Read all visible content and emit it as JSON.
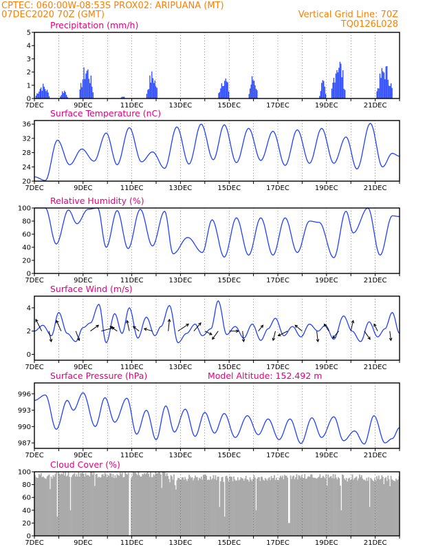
{
  "header": {
    "line1": "CPTEC:   060:00W-08:53S   PROX02: ARIPUANA (MT)",
    "line2_left": "07DEC2020 70Z (GMT)",
    "line2_right": "Vertical Grid Line: 70Z",
    "line3_right": "TQ0126L028"
  },
  "x_ticks": [
    "7DEC",
    "9DEC",
    "11DEC",
    "13DEC",
    "15DEC",
    "17DEC",
    "19DEC",
    "21DEC"
  ],
  "colors": {
    "header": "#ff7f00",
    "title": "#e5007a",
    "line": "#2040ff",
    "bar": "#1f3fff",
    "cloud": "#aaaaaa"
  },
  "chart_data": [
    {
      "type": "bar",
      "title": "Precipitation (mm/h)",
      "ylim": [
        0,
        5
      ],
      "y_ticks": [
        "0",
        "1",
        "2",
        "3",
        "4",
        "5"
      ],
      "events": [
        {
          "x": 0.05,
          "w": 0.55,
          "peak": 1.2
        },
        {
          "x": 1.05,
          "w": 0.3,
          "peak": 0.8
        },
        {
          "x": 1.85,
          "w": 0.55,
          "peak": 2.8
        },
        {
          "x": 3.55,
          "w": 0.15,
          "peak": 0.25
        },
        {
          "x": 4.6,
          "w": 0.45,
          "peak": 2.2
        },
        {
          "x": 7.55,
          "w": 0.45,
          "peak": 2.0
        },
        {
          "x": 8.8,
          "w": 0.35,
          "peak": 2.0
        },
        {
          "x": 11.7,
          "w": 0.25,
          "peak": 1.5
        },
        {
          "x": 12.2,
          "w": 0.55,
          "peak": 3.5
        },
        {
          "x": 14.05,
          "w": 0.65,
          "peak": 2.8
        }
      ]
    },
    {
      "type": "line",
      "title": "Surface Temperature (nC)",
      "ylim": [
        20,
        37
      ],
      "y_ticks": [
        "20",
        "24",
        "28",
        "32",
        "36"
      ],
      "nodes": [
        [
          0.0,
          21.2
        ],
        [
          0.45,
          20.2
        ],
        [
          0.95,
          31.5
        ],
        [
          1.45,
          24.6
        ],
        [
          1.95,
          29.0
        ],
        [
          2.45,
          25.6
        ],
        [
          2.95,
          33.5
        ],
        [
          3.4,
          24.6
        ],
        [
          3.9,
          35.0
        ],
        [
          4.4,
          25.4
        ],
        [
          4.85,
          28.2
        ],
        [
          5.35,
          23.6
        ],
        [
          5.85,
          35.2
        ],
        [
          6.35,
          24.8
        ],
        [
          6.85,
          36.0
        ],
        [
          7.35,
          26.0
        ],
        [
          7.8,
          35.8
        ],
        [
          8.3,
          25.2
        ],
        [
          8.8,
          34.8
        ],
        [
          9.3,
          25.8
        ],
        [
          9.8,
          34.0
        ],
        [
          10.3,
          24.4
        ],
        [
          10.8,
          34.4
        ],
        [
          11.3,
          25.0
        ],
        [
          11.8,
          34.8
        ],
        [
          12.3,
          25.0
        ],
        [
          12.8,
          32.4
        ],
        [
          13.25,
          23.4
        ],
        [
          13.8,
          36.2
        ],
        [
          14.3,
          24.0
        ],
        [
          14.7,
          27.8
        ],
        [
          15.0,
          27.0
        ]
      ]
    },
    {
      "type": "line",
      "title": "Relative Humidity (%)",
      "ylim": [
        0,
        100
      ],
      "y_ticks": [
        "0",
        "20",
        "40",
        "60",
        "80",
        "100"
      ],
      "nodes": [
        [
          0.0,
          100
        ],
        [
          0.45,
          100
        ],
        [
          0.9,
          45
        ],
        [
          1.4,
          97
        ],
        [
          1.75,
          76
        ],
        [
          2.2,
          98
        ],
        [
          2.6,
          100
        ],
        [
          2.95,
          40
        ],
        [
          3.4,
          96
        ],
        [
          3.85,
          38
        ],
        [
          4.35,
          98
        ],
        [
          4.85,
          42
        ],
        [
          5.35,
          95
        ],
        [
          5.7,
          30
        ],
        [
          6.3,
          55
        ],
        [
          6.9,
          32
        ],
        [
          7.3,
          82
        ],
        [
          7.8,
          25
        ],
        [
          8.3,
          85
        ],
        [
          8.8,
          28
        ],
        [
          9.3,
          85
        ],
        [
          9.8,
          28
        ],
        [
          10.3,
          85
        ],
        [
          10.8,
          32
        ],
        [
          11.3,
          80
        ],
        [
          11.7,
          78
        ],
        [
          12.3,
          24
        ],
        [
          12.8,
          95
        ],
        [
          13.1,
          62
        ],
        [
          13.7,
          100
        ],
        [
          14.2,
          28
        ],
        [
          14.7,
          88
        ],
        [
          15.0,
          87
        ]
      ]
    },
    {
      "type": "line",
      "title": "Surface Wind (m/s)",
      "ylim": [
        -0.5,
        5
      ],
      "y_ticks": [
        "0",
        "2",
        "4"
      ],
      "nodes": [
        [
          0.0,
          2.0
        ],
        [
          0.35,
          2.5
        ],
        [
          0.7,
          1.6
        ],
        [
          1.0,
          3.6
        ],
        [
          1.35,
          1.8
        ],
        [
          1.7,
          1.1
        ],
        [
          2.0,
          2.3
        ],
        [
          2.3,
          2.7
        ],
        [
          2.65,
          4.3
        ],
        [
          2.95,
          1.0
        ],
        [
          3.3,
          3.5
        ],
        [
          3.6,
          1.8
        ],
        [
          3.9,
          4.0
        ],
        [
          4.25,
          1.4
        ],
        [
          4.6,
          3.2
        ],
        [
          4.95,
          1.6
        ],
        [
          5.2,
          2.4
        ],
        [
          5.55,
          4.2
        ],
        [
          5.9,
          1.0
        ],
        [
          6.25,
          1.8
        ],
        [
          6.6,
          2.6
        ],
        [
          6.9,
          1.6
        ],
        [
          7.25,
          2.2
        ],
        [
          7.55,
          4.6
        ],
        [
          7.9,
          1.7
        ],
        [
          8.25,
          2.4
        ],
        [
          8.6,
          1.4
        ],
        [
          8.95,
          2.6
        ],
        [
          9.3,
          1.2
        ],
        [
          9.6,
          2.2
        ],
        [
          9.9,
          3.1
        ],
        [
          10.25,
          1.6
        ],
        [
          10.6,
          2.4
        ],
        [
          10.95,
          1.5
        ],
        [
          11.3,
          2.6
        ],
        [
          11.65,
          2.0
        ],
        [
          11.95,
          2.5
        ],
        [
          12.3,
          1.3
        ],
        [
          12.7,
          3.3
        ],
        [
          13.05,
          2.0
        ],
        [
          13.4,
          1.1
        ],
        [
          13.75,
          2.8
        ],
        [
          14.1,
          1.5
        ],
        [
          14.4,
          2.2
        ],
        [
          14.7,
          3.6
        ],
        [
          15.0,
          1.8
        ]
      ],
      "arrows": [
        {
          "x": 0.3,
          "dx": -0.5,
          "dy": 1.0
        },
        {
          "x": 0.6,
          "dx": 0.2,
          "dy": -0.9
        },
        {
          "x": 1.1,
          "dx": -0.4,
          "dy": 0.9
        },
        {
          "x": 1.7,
          "dx": 0.3,
          "dy": -0.8
        },
        {
          "x": 2.3,
          "dx": 0.7,
          "dy": 0.5
        },
        {
          "x": 2.75,
          "dx": 1.1,
          "dy": 0.3
        },
        {
          "x": 3.4,
          "dx": -0.6,
          "dy": 0.4
        },
        {
          "x": 3.9,
          "dx": -0.2,
          "dy": 0.9
        },
        {
          "x": 4.3,
          "dx": -0.5,
          "dy": 0.4
        },
        {
          "x": 4.85,
          "dx": -0.7,
          "dy": 0.2
        },
        {
          "x": 5.5,
          "dx": 0.1,
          "dy": 1.0
        },
        {
          "x": 5.9,
          "dx": 0.9,
          "dy": 0.6
        },
        {
          "x": 6.55,
          "dx": 0.6,
          "dy": 0.7
        },
        {
          "x": 7.0,
          "dx": 0.6,
          "dy": -0.3
        },
        {
          "x": 7.55,
          "dx": -0.5,
          "dy": -0.7
        },
        {
          "x": 8.0,
          "dx": 0.8,
          "dy": 0.0
        },
        {
          "x": 8.55,
          "dx": 0.1,
          "dy": -0.9
        },
        {
          "x": 9.2,
          "dx": 0.4,
          "dy": 0.5
        },
        {
          "x": 9.9,
          "dx": -0.2,
          "dy": -0.8
        },
        {
          "x": 10.4,
          "dx": -0.8,
          "dy": -0.4
        },
        {
          "x": 11.0,
          "dx": -0.6,
          "dy": 0.5
        },
        {
          "x": 11.6,
          "dx": 0.1,
          "dy": -0.9
        },
        {
          "x": 12.1,
          "dx": -0.4,
          "dy": 0.6
        },
        {
          "x": 12.5,
          "dx": -0.5,
          "dy": -0.6
        },
        {
          "x": 13.0,
          "dx": 0.2,
          "dy": 0.9
        },
        {
          "x": 13.55,
          "dx": 0.5,
          "dy": -0.7
        },
        {
          "x": 14.1,
          "dx": -0.3,
          "dy": 0.6
        },
        {
          "x": 14.6,
          "dx": 0.1,
          "dy": -0.8
        }
      ]
    },
    {
      "type": "line",
      "title": "Surface Pressure (hPa)",
      "annotation": "Model Altitude: 152.492 m",
      "ylim": [
        986,
        998
      ],
      "y_ticks": [
        "987",
        "990",
        "993",
        "996"
      ],
      "nodes": [
        [
          0.0,
          994.8
        ],
        [
          0.45,
          995.8
        ],
        [
          0.9,
          989.5
        ],
        [
          1.35,
          994.8
        ],
        [
          1.6,
          993.0
        ],
        [
          2.0,
          996.2
        ],
        [
          2.5,
          990.0
        ],
        [
          2.9,
          995.3
        ],
        [
          3.3,
          990.8
        ],
        [
          3.8,
          995.2
        ],
        [
          4.2,
          988.6
        ],
        [
          4.6,
          993.0
        ],
        [
          5.0,
          987.6
        ],
        [
          5.4,
          993.8
        ],
        [
          5.75,
          989.0
        ],
        [
          6.2,
          993.2
        ],
        [
          6.6,
          988.2
        ],
        [
          7.0,
          992.6
        ],
        [
          7.4,
          988.8
        ],
        [
          7.8,
          992.4
        ],
        [
          8.25,
          988.0
        ],
        [
          8.75,
          992.0
        ],
        [
          9.2,
          988.5
        ],
        [
          9.6,
          991.4
        ],
        [
          10.05,
          987.6
        ],
        [
          10.5,
          991.4
        ],
        [
          10.95,
          986.9
        ],
        [
          11.4,
          991.6
        ],
        [
          11.8,
          988.0
        ],
        [
          12.3,
          991.8
        ],
        [
          12.7,
          987.4
        ],
        [
          13.15,
          989.2
        ],
        [
          13.55,
          986.8
        ],
        [
          13.95,
          992.0
        ],
        [
          14.4,
          987.0
        ],
        [
          14.7,
          987.8
        ],
        [
          15.0,
          989.8
        ]
      ]
    },
    {
      "type": "bar",
      "title": "Cloud Cover (%)",
      "ylim": [
        0,
        100
      ],
      "y_ticks": [
        "0",
        "20",
        "40",
        "60",
        "80",
        "100"
      ],
      "bands": [
        [
          0.0,
          0.85,
          94
        ],
        [
          0.85,
          1.4,
          98
        ],
        [
          1.4,
          2.5,
          97
        ],
        [
          2.5,
          4.0,
          95
        ],
        [
          4.0,
          5.5,
          97
        ],
        [
          5.5,
          7.5,
          92
        ],
        [
          7.5,
          9.0,
          90
        ],
        [
          9.0,
          10.5,
          91
        ],
        [
          10.5,
          12.0,
          93
        ],
        [
          12.0,
          13.5,
          92
        ],
        [
          13.5,
          15.0,
          90
        ]
      ],
      "gaps": [
        [
          0.88,
          0.92,
          30
        ],
        [
          1.45,
          1.49,
          40
        ],
        [
          2.45,
          2.49,
          55
        ],
        [
          3.85,
          3.92,
          0
        ],
        [
          5.75,
          5.82,
          0
        ],
        [
          7.55,
          7.59,
          45
        ],
        [
          7.75,
          7.82,
          30
        ],
        [
          9.05,
          9.1,
          40
        ],
        [
          10.4,
          10.48,
          20
        ],
        [
          12.55,
          12.6,
          40
        ],
        [
          13.75,
          13.79,
          45
        ]
      ]
    }
  ]
}
